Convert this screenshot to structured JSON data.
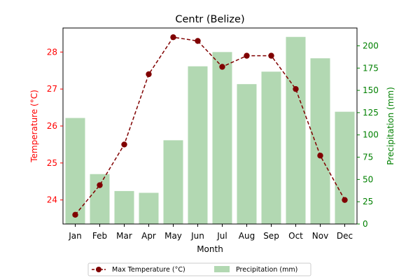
{
  "colors": {
    "left_axis": "#ff0000",
    "right_axis": "#008000",
    "line": "#800000",
    "bars": "#b2d8b2",
    "axes": "#000000"
  },
  "chart_data": {
    "type": "bar+line",
    "title": "Centr (Belize)",
    "xlabel": "Month",
    "ylabel_left": "Temperature (°C)",
    "ylabel_right": "Precipitation (mm)",
    "categories": [
      "Jan",
      "Feb",
      "Mar",
      "Apr",
      "May",
      "Jun",
      "Jul",
      "Aug",
      "Sep",
      "Oct",
      "Nov",
      "Dec"
    ],
    "temperature": {
      "name": "Max Temperature (°C)",
      "values": [
        23.6,
        24.4,
        25.5,
        27.4,
        28.4,
        28.3,
        27.6,
        27.9,
        27.9,
        27.0,
        25.2,
        24.0
      ],
      "ylim": [
        23.35,
        28.65
      ],
      "ticks": [
        24,
        25,
        26,
        27,
        28
      ]
    },
    "precipitation": {
      "name": "Precipitation (mm)",
      "values": [
        119,
        56,
        37,
        35,
        94,
        177,
        193,
        157,
        171,
        210,
        186,
        126
      ],
      "ylim": [
        0,
        220
      ],
      "ticks": [
        0,
        25,
        50,
        75,
        100,
        125,
        150,
        175,
        200
      ]
    },
    "legend_position": "bottom-center",
    "grid": false
  }
}
